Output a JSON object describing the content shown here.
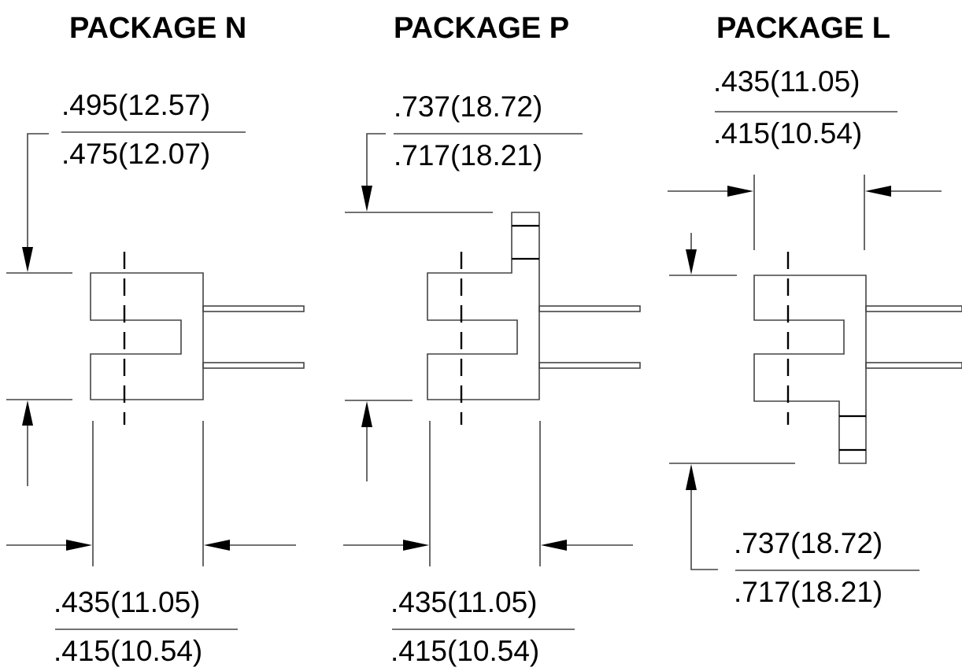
{
  "packages": [
    {
      "title": "PACKAGE N",
      "height_dim": {
        "max": ".495(12.57)",
        "min": ".475(12.07)"
      },
      "width_dim": {
        "max": ".435(11.05)",
        "min": ".415(10.54)"
      }
    },
    {
      "title": "PACKAGE P",
      "height_dim": {
        "max": ".737(18.72)",
        "min": ".717(18.21)"
      },
      "width_dim": {
        "max": ".435(11.05)",
        "min": ".415(10.54)"
      }
    },
    {
      "title": "PACKAGE L",
      "width_dim": {
        "max": ".435(11.05)",
        "min": ".415(10.54)"
      },
      "height_dim": {
        "max": ".737(18.72)",
        "min": ".717(18.21)"
      }
    }
  ]
}
